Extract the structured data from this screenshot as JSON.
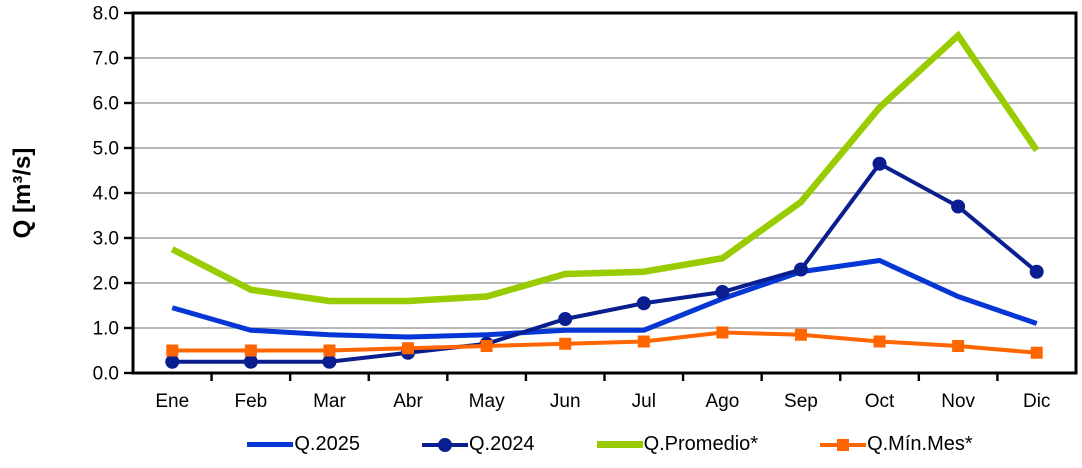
{
  "chart_data": {
    "type": "line",
    "title": "",
    "xlabel": "",
    "ylabel": "Q [m³/s]",
    "ylim": [
      0,
      8
    ],
    "ytick_labels": [
      "0.0",
      "1.0",
      "2.0",
      "3.0",
      "4.0",
      "5.0",
      "6.0",
      "7.0",
      "8.0"
    ],
    "categories": [
      "Ene",
      "Feb",
      "Mar",
      "Abr",
      "May",
      "Jun",
      "Jul",
      "Ago",
      "Sep",
      "Oct",
      "Nov",
      "Dic"
    ],
    "grid": "horizontal",
    "legend_position": "bottom",
    "colors": {
      "grid": "#8C8C8C",
      "axis": "#000000",
      "text": "#000000",
      "background": "#FFFFFF"
    },
    "series": [
      {
        "name": "Q.2025",
        "color": "#0536D6",
        "width": 5,
        "marker": "none",
        "marker_size": 0,
        "values": [
          1.45,
          0.95,
          0.85,
          0.8,
          0.85,
          0.95,
          0.95,
          1.65,
          2.25,
          2.5,
          1.7,
          1.1
        ]
      },
      {
        "name": "Q.2024",
        "color": "#0B1E8F",
        "width": 4,
        "marker": "circle",
        "marker_size": 7,
        "values": [
          0.25,
          0.25,
          0.25,
          0.45,
          0.65,
          1.2,
          1.55,
          1.8,
          2.3,
          4.65,
          3.7,
          2.25
        ]
      },
      {
        "name": "Q.Promedio*",
        "color": "#99CC00",
        "width": 6.5,
        "marker": "none",
        "marker_size": 0,
        "values": [
          2.75,
          1.85,
          1.6,
          1.6,
          1.7,
          2.2,
          2.25,
          2.55,
          3.8,
          5.9,
          7.5,
          4.95
        ]
      },
      {
        "name": "Q.Mín.Mes*",
        "color": "#FF6600",
        "width": 4,
        "marker": "square",
        "marker_size": 6,
        "values": [
          0.5,
          0.5,
          0.5,
          0.55,
          0.6,
          0.65,
          0.7,
          0.9,
          0.85,
          0.7,
          0.6,
          0.45
        ]
      }
    ]
  }
}
